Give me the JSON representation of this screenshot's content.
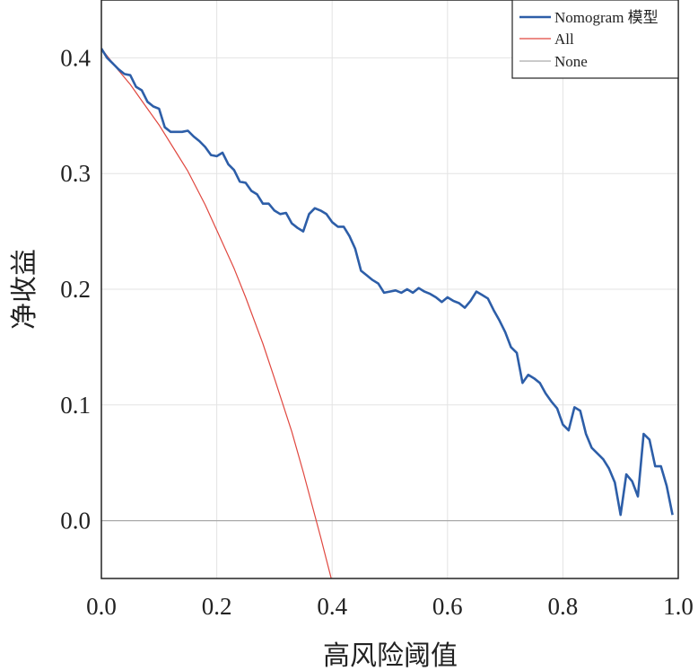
{
  "chart_data": {
    "type": "line",
    "xlabel": "高风险阈值",
    "ylabel": "净收益",
    "xlim": [
      0.0,
      1.0
    ],
    "ylim": [
      -0.05,
      0.45
    ],
    "x_ticks": [
      "0.0",
      "0.2",
      "0.4",
      "0.6",
      "0.8",
      "1.0"
    ],
    "x_tick_values": [
      0.0,
      0.2,
      0.4,
      0.6,
      0.8,
      1.0
    ],
    "y_ticks": [
      "0.0",
      "0.1",
      "0.2",
      "0.3",
      "0.4"
    ],
    "y_tick_values": [
      0.0,
      0.1,
      0.2,
      0.3,
      0.4
    ],
    "grid": true,
    "legend_position": "top-right",
    "series": [
      {
        "name": "Nomogram 模型",
        "color": "#2d5ea8",
        "x": [
          0.0,
          0.01,
          0.02,
          0.03,
          0.04,
          0.05,
          0.06,
          0.07,
          0.08,
          0.09,
          0.1,
          0.11,
          0.12,
          0.13,
          0.14,
          0.15,
          0.16,
          0.17,
          0.18,
          0.19,
          0.2,
          0.21,
          0.22,
          0.23,
          0.24,
          0.25,
          0.26,
          0.27,
          0.28,
          0.29,
          0.3,
          0.31,
          0.32,
          0.33,
          0.34,
          0.35,
          0.36,
          0.37,
          0.38,
          0.39,
          0.4,
          0.41,
          0.42,
          0.43,
          0.44,
          0.45,
          0.46,
          0.47,
          0.48,
          0.49,
          0.5,
          0.51,
          0.52,
          0.53,
          0.54,
          0.55,
          0.56,
          0.57,
          0.58,
          0.59,
          0.6,
          0.61,
          0.62,
          0.63,
          0.64,
          0.65,
          0.66,
          0.67,
          0.68,
          0.69,
          0.7,
          0.71,
          0.72,
          0.73,
          0.74,
          0.75,
          0.76,
          0.77,
          0.78,
          0.79,
          0.8,
          0.81,
          0.82,
          0.83,
          0.84,
          0.85,
          0.86,
          0.87,
          0.88,
          0.89,
          0.9,
          0.91,
          0.92,
          0.93,
          0.94,
          0.95,
          0.96,
          0.97,
          0.98,
          0.99
        ],
        "values": [
          0.408,
          0.4,
          0.395,
          0.39,
          0.386,
          0.385,
          0.375,
          0.372,
          0.362,
          0.358,
          0.356,
          0.34,
          0.336,
          0.336,
          0.336,
          0.337,
          0.332,
          0.328,
          0.323,
          0.316,
          0.315,
          0.318,
          0.308,
          0.303,
          0.293,
          0.292,
          0.285,
          0.282,
          0.274,
          0.274,
          0.268,
          0.265,
          0.266,
          0.257,
          0.253,
          0.25,
          0.265,
          0.27,
          0.268,
          0.265,
          0.258,
          0.254,
          0.254,
          0.246,
          0.235,
          0.216,
          0.212,
          0.208,
          0.205,
          0.197,
          0.198,
          0.199,
          0.197,
          0.2,
          0.197,
          0.201,
          0.198,
          0.196,
          0.193,
          0.189,
          0.193,
          0.19,
          0.188,
          0.184,
          0.19,
          0.198,
          0.195,
          0.192,
          0.182,
          0.173,
          0.163,
          0.15,
          0.145,
          0.119,
          0.126,
          0.123,
          0.119,
          0.11,
          0.103,
          0.097,
          0.083,
          0.078,
          0.098,
          0.095,
          0.075,
          0.063,
          0.058,
          0.053,
          0.045,
          0.033,
          0.005,
          0.04,
          0.034,
          0.021,
          0.075,
          0.07,
          0.047,
          0.047,
          0.03,
          0.005
        ]
      },
      {
        "name": "All",
        "color": "#e0473f",
        "x": [
          0.0,
          0.03,
          0.05,
          0.08,
          0.1,
          0.13,
          0.15,
          0.18,
          0.2,
          0.23,
          0.25,
          0.28,
          0.3,
          0.33,
          0.35,
          0.38,
          0.4,
          0.43
        ],
        "values": [
          0.408,
          0.389,
          0.377,
          0.356,
          0.342,
          0.318,
          0.302,
          0.273,
          0.251,
          0.218,
          0.193,
          0.153,
          0.123,
          0.077,
          0.042,
          -0.014,
          -0.053,
          -0.113
        ]
      },
      {
        "name": "None",
        "color": "#aaaaaa",
        "x": [
          0.0,
          1.0
        ],
        "values": [
          0.0,
          0.0
        ]
      }
    ]
  }
}
